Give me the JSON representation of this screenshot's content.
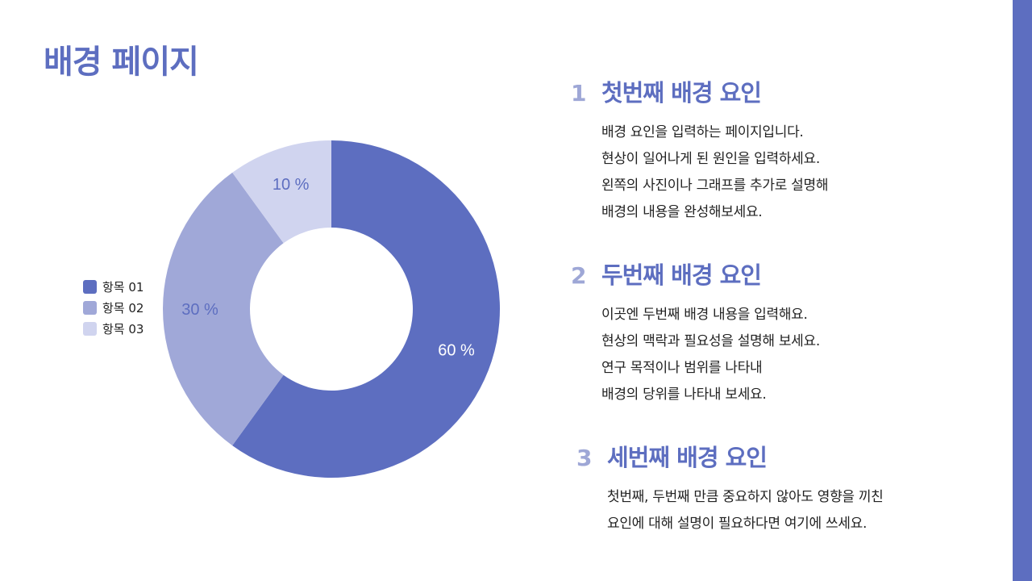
{
  "page": {
    "title": "배경 페이지"
  },
  "colors": {
    "accent": "#5d6ec0",
    "numbers": "#9ea7d6",
    "slice_1": "#5d6ec0",
    "slice_2": "#a0a8d8",
    "slice_3": "#d0d4ef"
  },
  "chart_data": {
    "type": "pie",
    "donut": true,
    "categories": [
      "항목 01",
      "항목 02",
      "항목 03"
    ],
    "values": [
      60,
      30,
      10
    ],
    "data_labels": [
      "60 %",
      "30 %",
      "10 %"
    ],
    "legend_position": "left"
  },
  "sections": [
    {
      "number": "1",
      "title": "첫번째 배경 요인",
      "lines": [
        "배경 요인을 입력하는 페이지입니다.",
        "현상이 일어나게 된 원인을 입력하세요.",
        "왼쪽의 사진이나 그래프를 추가로 설명해",
        "배경의 내용을 완성해보세요."
      ]
    },
    {
      "number": "2",
      "title": "두번째 배경 요인",
      "lines": [
        "이곳엔 두번째 배경 내용을 입력해요.",
        "현상의 맥락과 필요성을 설명해 보세요.",
        "연구 목적이나 범위를 나타내",
        "배경의 당위를 나타내 보세요."
      ]
    },
    {
      "number": "3",
      "title": "세번째 배경 요인",
      "lines": [
        "첫번째, 두번째 만큼 중요하지 않아도 영향을 끼친",
        "요인에 대해 설명이 필요하다면 여기에 쓰세요."
      ]
    }
  ]
}
